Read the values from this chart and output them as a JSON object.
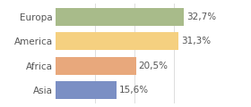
{
  "categories": [
    "Europa",
    "America",
    "Africa",
    "Asia"
  ],
  "values": [
    32.7,
    31.3,
    20.5,
    15.6
  ],
  "labels": [
    "32,7%",
    "31,3%",
    "20,5%",
    "15,6%"
  ],
  "colors": [
    "#a8bb8a",
    "#f5d080",
    "#e8a87c",
    "#7b8fc4"
  ],
  "background_color": "#ffffff",
  "xlim": [
    0,
    42
  ],
  "bar_height": 0.72,
  "label_fontsize": 7.5,
  "category_fontsize": 7.5,
  "grid_color": "#ffffff",
  "tick_color": "#666666"
}
